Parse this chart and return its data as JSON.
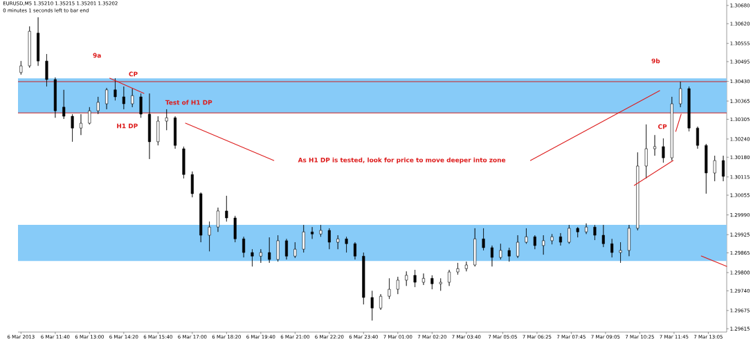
{
  "chart_data": {
    "type": "candlestick",
    "title": "EURUSD,M5  1.35210 1.35215 1.35201 1.35202",
    "subtitle": "0 minutes 1 seconds left to bar end",
    "x": [
      "2013-03-06T10:20",
      "2013-03-06T10:40",
      "2013-03-06T11:00",
      "2013-03-06T11:20",
      "2013-03-06T11:40",
      "2013-03-06T12:00",
      "2013-03-06T12:20",
      "2013-03-06T12:40",
      "2013-03-06T13:00",
      "2013-03-06T13:20",
      "2013-03-06T13:40",
      "2013-03-06T14:00",
      "2013-03-06T14:20",
      "2013-03-06T14:40",
      "2013-03-06T15:00",
      "2013-03-06T15:20",
      "2013-03-06T15:40",
      "2013-03-06T16:00",
      "2013-03-06T16:20",
      "2013-03-06T16:40",
      "2013-03-06T17:00",
      "2013-03-06T17:20",
      "2013-03-06T17:40",
      "2013-03-06T18:00",
      "2013-03-06T18:20",
      "2013-03-06T18:40",
      "2013-03-06T19:00",
      "2013-03-06T19:20",
      "2013-03-06T19:40",
      "2013-03-06T20:00",
      "2013-03-06T20:20",
      "2013-03-06T20:40",
      "2013-03-06T21:00",
      "2013-03-06T21:20",
      "2013-03-06T21:40",
      "2013-03-06T22:00",
      "2013-03-06T22:20",
      "2013-03-06T22:40",
      "2013-03-06T23:00",
      "2013-03-06T23:20",
      "2013-03-06T23:40",
      "2013-03-07T00:00",
      "2013-03-07T00:20",
      "2013-03-07T00:40",
      "2013-03-07T01:00",
      "2013-03-07T01:20",
      "2013-03-07T01:40",
      "2013-03-07T02:00",
      "2013-03-07T02:20",
      "2013-03-07T02:40",
      "2013-03-07T03:00",
      "2013-03-07T03:20",
      "2013-03-07T03:40",
      "2013-03-07T04:00",
      "2013-03-07T04:20",
      "2013-03-07T04:40",
      "2013-03-07T05:00",
      "2013-03-07T05:20",
      "2013-03-07T05:40",
      "2013-03-07T06:00",
      "2013-03-07T06:20",
      "2013-03-07T06:40",
      "2013-03-07T07:00",
      "2013-03-07T07:20",
      "2013-03-07T07:40",
      "2013-03-07T08:00",
      "2013-03-07T08:20",
      "2013-03-07T08:40",
      "2013-03-07T09:00",
      "2013-03-07T09:20",
      "2013-03-07T09:40",
      "2013-03-07T10:00",
      "2013-03-07T10:20",
      "2013-03-07T10:40",
      "2013-03-07T11:00",
      "2013-03-07T11:20",
      "2013-03-07T11:40",
      "2013-03-07T12:00",
      "2013-03-07T12:20",
      "2013-03-07T12:40",
      "2013-03-07T13:00",
      "2013-03-07T13:20",
      "2013-03-07T13:40"
    ],
    "ohlc": [
      [
        1.30459,
        1.30497,
        1.30452,
        1.30481
      ],
      [
        1.30481,
        1.30611,
        1.30475,
        1.30595
      ],
      [
        1.30589,
        1.30641,
        1.30481,
        1.30497
      ],
      [
        1.30497,
        1.3052,
        1.30413,
        1.30436
      ],
      [
        1.30436,
        1.30443,
        1.3031,
        1.30333
      ],
      [
        1.30345,
        1.30402,
        1.30306,
        1.30315
      ],
      [
        1.30315,
        1.30322,
        1.30231,
        1.30276
      ],
      [
        1.30276,
        1.30322,
        1.30253,
        1.30292
      ],
      [
        1.30292,
        1.30345,
        1.30288,
        1.30333
      ],
      [
        1.30333,
        1.30379,
        1.30322,
        1.30361
      ],
      [
        1.30356,
        1.30408,
        1.30338,
        1.30402
      ],
      [
        1.30402,
        1.3044,
        1.30367,
        1.30379
      ],
      [
        1.30379,
        1.30413,
        1.30338,
        1.30356
      ],
      [
        1.30356,
        1.30406,
        1.30345,
        1.30383
      ],
      [
        1.30379,
        1.3039,
        1.3031,
        1.30322
      ],
      [
        1.30322,
        1.3039,
        1.30174,
        1.30231
      ],
      [
        1.30231,
        1.30315,
        1.30219,
        1.30299
      ],
      [
        1.30299,
        1.30338,
        1.30269,
        1.3031
      ],
      [
        1.3031,
        1.30315,
        1.30208,
        1.30219
      ],
      [
        1.30208,
        1.30215,
        1.3011,
        1.30123
      ],
      [
        1.30123,
        1.30133,
        1.30048,
        1.3006
      ],
      [
        1.3006,
        1.30064,
        1.299,
        1.29923
      ],
      [
        1.29923,
        1.29968,
        1.2987,
        1.2995
      ],
      [
        1.2995,
        1.30014,
        1.29934,
        1.30003
      ],
      [
        1.30003,
        1.30053,
        1.29968,
        1.2998
      ],
      [
        1.2998,
        1.29987,
        1.299,
        1.29911
      ],
      [
        1.29911,
        1.29918,
        1.2985,
        1.29866
      ],
      [
        1.29866,
        1.29877,
        1.2982,
        1.29854
      ],
      [
        1.29854,
        1.29877,
        1.29832,
        1.29866
      ],
      [
        1.29866,
        1.29916,
        1.29832,
        1.29843
      ],
      [
        1.29843,
        1.29923,
        1.29836,
        1.29905
      ],
      [
        1.29905,
        1.29911,
        1.29843,
        1.29854
      ],
      [
        1.29854,
        1.299,
        1.29848,
        1.29877
      ],
      [
        1.29877,
        1.29957,
        1.29866,
        1.29934
      ],
      [
        1.29934,
        1.2995,
        1.29911,
        1.29927
      ],
      [
        1.29927,
        1.29957,
        1.29918,
        1.29939
      ],
      [
        1.29939,
        1.29946,
        1.29877,
        1.299
      ],
      [
        1.299,
        1.29923,
        1.29877,
        1.29911
      ],
      [
        1.29911,
        1.29918,
        1.29866,
        1.29895
      ],
      [
        1.29895,
        1.299,
        1.29843,
        1.29854
      ],
      [
        1.29854,
        1.29866,
        1.29695,
        1.29718
      ],
      [
        1.29718,
        1.2974,
        1.29642,
        1.29683
      ],
      [
        1.29683,
        1.29729,
        1.29677,
        1.29722
      ],
      [
        1.29722,
        1.29781,
        1.29713,
        1.29745
      ],
      [
        1.29745,
        1.29786,
        1.29729,
        1.29775
      ],
      [
        1.29775,
        1.29804,
        1.29756,
        1.29791
      ],
      [
        1.29791,
        1.29809,
        1.29752,
        1.29768
      ],
      [
        1.29768,
        1.29797,
        1.29759,
        1.29781
      ],
      [
        1.29781,
        1.29791,
        1.29745,
        1.29763
      ],
      [
        1.29763,
        1.29781,
        1.2974,
        1.29768
      ],
      [
        1.29768,
        1.29809,
        1.29756,
        1.29802
      ],
      [
        1.29802,
        1.29832,
        1.29793,
        1.29813
      ],
      [
        1.29813,
        1.29836,
        1.29804,
        1.29825
      ],
      [
        1.29825,
        1.29946,
        1.2982,
        1.29911
      ],
      [
        1.29911,
        1.29946,
        1.29873,
        1.29882
      ],
      [
        1.29882,
        1.29889,
        1.2982,
        1.2985
      ],
      [
        1.2985,
        1.29895,
        1.29843,
        1.29873
      ],
      [
        1.29873,
        1.29882,
        1.29836,
        1.29854
      ],
      [
        1.29854,
        1.29923,
        1.29848,
        1.299
      ],
      [
        1.299,
        1.29946,
        1.29895,
        1.29918
      ],
      [
        1.29918,
        1.29923,
        1.29877,
        1.29889
      ],
      [
        1.29889,
        1.29923,
        1.29859,
        1.29905
      ],
      [
        1.29905,
        1.29927,
        1.29893,
        1.29918
      ],
      [
        1.29918,
        1.2993,
        1.29889,
        1.299
      ],
      [
        1.299,
        1.29957,
        1.29895,
        1.29946
      ],
      [
        1.29946,
        1.2995,
        1.29916,
        1.29934
      ],
      [
        1.29934,
        1.29962,
        1.29927,
        1.2995
      ],
      [
        1.2995,
        1.29957,
        1.29907,
        1.29923
      ],
      [
        1.29923,
        1.29957,
        1.29884,
        1.29895
      ],
      [
        1.29895,
        1.29911,
        1.2985,
        1.29866
      ],
      [
        1.29866,
        1.299,
        1.29832,
        1.29873
      ],
      [
        1.29873,
        1.29957,
        1.29854,
        1.29946
      ],
      [
        1.29946,
        1.30196,
        1.29939,
        1.30151
      ],
      [
        1.30151,
        1.30288,
        1.3011,
        1.30208
      ],
      [
        1.30208,
        1.30253,
        1.30185,
        1.30215
      ],
      [
        1.30215,
        1.30242,
        1.30162,
        1.30178
      ],
      [
        1.30178,
        1.30379,
        1.30169,
        1.30356
      ],
      [
        1.30356,
        1.30429,
        1.30345,
        1.30406
      ],
      [
        1.30406,
        1.30413,
        1.30265,
        1.30276
      ],
      [
        1.30276,
        1.30281,
        1.30208,
        1.30219
      ],
      [
        1.30219,
        1.30224,
        1.3006,
        1.30128
      ],
      [
        1.30128,
        1.30185,
        1.30101,
        1.30169
      ],
      [
        1.30169,
        1.30185,
        1.30101,
        1.30117
      ]
    ],
    "xlim": [
      "2013-03-06T10:13",
      "2013-03-07T13:48"
    ],
    "ylim": [
      1.29604,
      1.30698
    ],
    "xticks": [
      {
        "value": "2013-03-06T10:20",
        "label": "6 Mar 2013"
      },
      {
        "value": "2013-03-06T11:40",
        "label": "6 Mar 11:40"
      },
      {
        "value": "2013-03-06T13:00",
        "label": "6 Mar 13:00"
      },
      {
        "value": "2013-03-06T14:20",
        "label": "6 Mar 14:20"
      },
      {
        "value": "2013-03-06T15:40",
        "label": "6 Mar 15:40"
      },
      {
        "value": "2013-03-06T17:00",
        "label": "6 Mar 17:00"
      },
      {
        "value": "2013-03-06T18:20",
        "label": "6 Mar 18:20"
      },
      {
        "value": "2013-03-06T19:40",
        "label": "6 Mar 19:40"
      },
      {
        "value": "2013-03-06T21:00",
        "label": "6 Mar 21:00"
      },
      {
        "value": "2013-03-06T22:20",
        "label": "6 Mar 22:20"
      },
      {
        "value": "2013-03-06T23:40",
        "label": "6 Mar 23:40"
      },
      {
        "value": "2013-03-07T01:00",
        "label": "7 Mar 01:00"
      },
      {
        "value": "2013-03-07T02:20",
        "label": "7 Mar 02:20"
      },
      {
        "value": "2013-03-07T03:40",
        "label": "7 Mar 03:40"
      },
      {
        "value": "2013-03-07T05:05",
        "label": "7 Mar 05:05"
      },
      {
        "value": "2013-03-07T06:25",
        "label": "7 Mar 06:25"
      },
      {
        "value": "2013-03-07T07:45",
        "label": "7 Mar 07:45"
      },
      {
        "value": "2013-03-07T09:05",
        "label": "7 Mar 09:05"
      },
      {
        "value": "2013-03-07T10:25",
        "label": "7 Mar 10:25"
      },
      {
        "value": "2013-03-07T11:45",
        "label": "7 Mar 11:45"
      },
      {
        "value": "2013-03-07T13:05",
        "label": "7 Mar 13:05"
      }
    ],
    "yticks": [
      {
        "value": 1.29615,
        "label": "1.29615"
      },
      {
        "value": 1.29675,
        "label": "1.29675"
      },
      {
        "value": 1.2974,
        "label": "1.29740"
      },
      {
        "value": 1.298,
        "label": "1.29800"
      },
      {
        "value": 1.29865,
        "label": "1.29865"
      },
      {
        "value": 1.29925,
        "label": "1.29925"
      },
      {
        "value": 1.2999,
        "label": "1.29990"
      },
      {
        "value": 1.30055,
        "label": "1.30055"
      },
      {
        "value": 1.30115,
        "label": "1.30115"
      },
      {
        "value": 1.3018,
        "label": "1.30180"
      },
      {
        "value": 1.3024,
        "label": "1.30240"
      },
      {
        "value": 1.30305,
        "label": "1.30305"
      },
      {
        "value": 1.30365,
        "label": "1.30365"
      },
      {
        "value": 1.3043,
        "label": "1.30430"
      },
      {
        "value": 1.30495,
        "label": "1.30495"
      },
      {
        "value": 1.30555,
        "label": "1.30555"
      },
      {
        "value": 1.3062,
        "label": "1.30620"
      },
      {
        "value": 1.3068,
        "label": "1.30680"
      }
    ],
    "bands": [
      {
        "axis": "y",
        "from": 1.30326,
        "to": 1.3044,
        "color": "#87cbf8"
      },
      {
        "axis": "y",
        "from": 1.29838,
        "to": 1.29957,
        "color": "#87cbf8"
      }
    ],
    "ref_lines": [
      {
        "axis": "y",
        "value": 1.30429,
        "color": "#cc1f1f"
      },
      {
        "axis": "y",
        "value": 1.30326,
        "color": "#cc1f1f"
      }
    ],
    "annotations": [
      "9a",
      "CP",
      "Test of H1 DP",
      "H1 DP",
      "As H1 DP is tested, look for price to move deeper into zone",
      "9b",
      "CP"
    ]
  }
}
